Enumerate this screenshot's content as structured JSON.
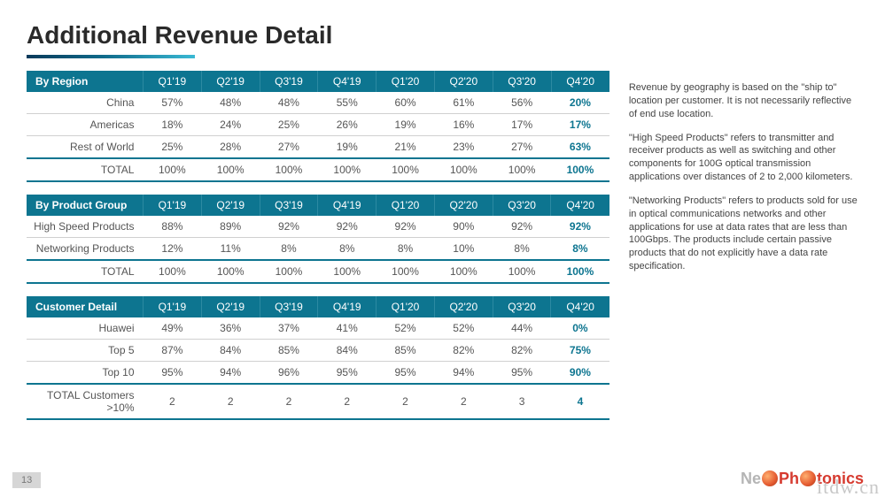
{
  "title": "Additional Revenue Detail",
  "periods": [
    "Q1'19",
    "Q2'19",
    "Q3'19",
    "Q4'19",
    "Q1'20",
    "Q2'20",
    "Q3'20",
    "Q4'20"
  ],
  "colors": {
    "header_bg": "#0d7590",
    "header_text": "#ffffff",
    "accent": "#0d7590",
    "body_text": "#555555",
    "row_border": "#d0d0d0",
    "underline_gradient": [
      "#0a3a5a",
      "#0f6a8a",
      "#3ab9d4"
    ]
  },
  "tables": [
    {
      "label": "By Region",
      "rows": [
        {
          "label": "China",
          "v": [
            "57%",
            "48%",
            "48%",
            "55%",
            "60%",
            "61%",
            "56%",
            "20%"
          ]
        },
        {
          "label": "Americas",
          "v": [
            "18%",
            "24%",
            "25%",
            "26%",
            "19%",
            "16%",
            "17%",
            "17%"
          ]
        },
        {
          "label": "Rest of World",
          "v": [
            "25%",
            "28%",
            "27%",
            "19%",
            "21%",
            "23%",
            "27%",
            "63%"
          ]
        }
      ],
      "total": {
        "label": "TOTAL",
        "v": [
          "100%",
          "100%",
          "100%",
          "100%",
          "100%",
          "100%",
          "100%",
          "100%"
        ]
      }
    },
    {
      "label": "By Product Group",
      "rows": [
        {
          "label": "High Speed Products",
          "v": [
            "88%",
            "89%",
            "92%",
            "92%",
            "92%",
            "90%",
            "92%",
            "92%"
          ]
        },
        {
          "label": "Networking Products",
          "v": [
            "12%",
            "11%",
            "8%",
            "8%",
            "8%",
            "10%",
            "8%",
            "8%"
          ]
        }
      ],
      "total": {
        "label": "TOTAL",
        "v": [
          "100%",
          "100%",
          "100%",
          "100%",
          "100%",
          "100%",
          "100%",
          "100%"
        ]
      }
    },
    {
      "label": "Customer Detail",
      "rows": [
        {
          "label": "Huawei",
          "v": [
            "49%",
            "36%",
            "37%",
            "41%",
            "52%",
            "52%",
            "44%",
            "0%"
          ]
        },
        {
          "label": "Top 5",
          "v": [
            "87%",
            "84%",
            "85%",
            "84%",
            "85%",
            "82%",
            "82%",
            "75%"
          ]
        },
        {
          "label": "Top 10",
          "v": [
            "95%",
            "94%",
            "96%",
            "95%",
            "95%",
            "94%",
            "95%",
            "90%"
          ]
        }
      ],
      "total": {
        "label": "TOTAL Customers >10%",
        "v": [
          "2",
          "2",
          "2",
          "2",
          "2",
          "2",
          "3",
          "4"
        ]
      }
    }
  ],
  "notes": [
    "Revenue by geography is based on the \"ship to\" location per customer.  It is not necessarily reflective of end use location.",
    "\"High Speed Products\" refers to transmitter and receiver products as well as switching and other components for 100G optical transmission applications over distances of 2 to 2,000 kilometers.",
    "\"Networking Products\" refers to products sold for use in optical communications networks and other applications for use at data rates that are less than 100Gbps.  The products include certain passive products that do not explicitly have a data rate specification."
  ],
  "page_number": "13",
  "logo": {
    "part1": "Ne",
    "part2": "Ph",
    "part3": "tonics"
  },
  "watermark": "itdw.cn"
}
